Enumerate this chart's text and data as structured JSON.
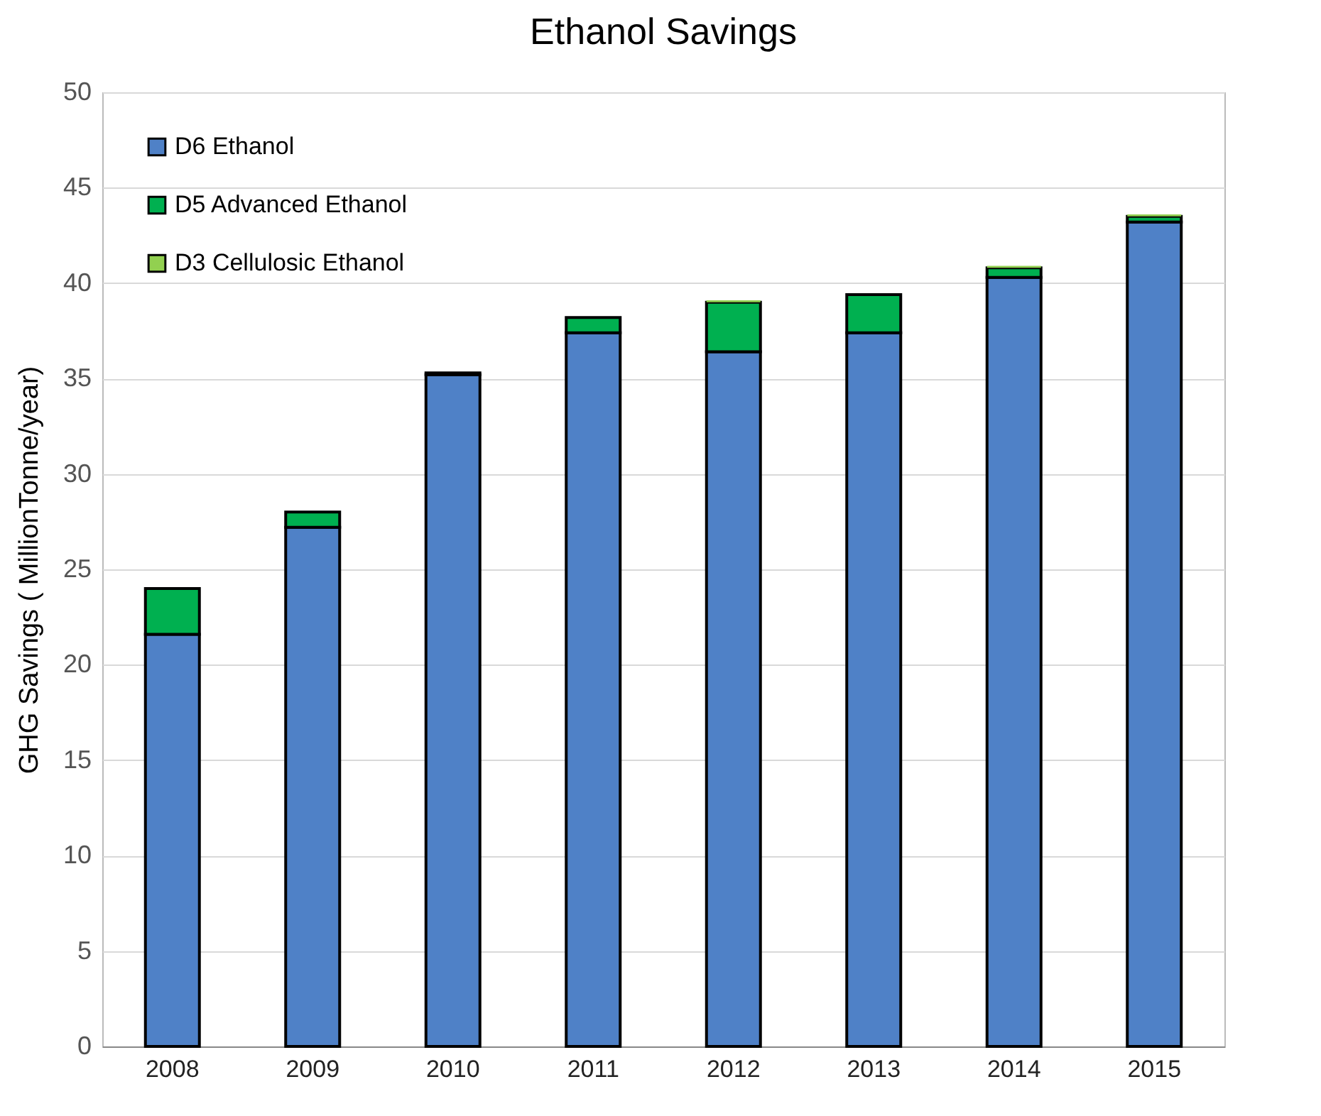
{
  "chart_data": {
    "type": "bar",
    "title": "Ethanol Savings",
    "ylabel": "GHG Savings ( MillionTonne/year)",
    "categories": [
      "2008",
      "2009",
      "2010",
      "2011",
      "2012",
      "2013",
      "2014",
      "2015"
    ],
    "stacked": true,
    "series": [
      {
        "name": "D6 Ethanol",
        "color": "#4f81c7",
        "values": [
          21.6,
          27.2,
          35.2,
          37.4,
          36.4,
          37.4,
          40.3,
          43.2
        ]
      },
      {
        "name": "D5 Advanced Ethanol",
        "color": "#00b050",
        "values": [
          2.4,
          0.8,
          0.1,
          0.8,
          2.6,
          2.0,
          0.5,
          0.3
        ]
      },
      {
        "name": "D3 Cellulosic Ethanol",
        "color": "#92d050",
        "values": [
          null,
          null,
          null,
          null,
          0.1,
          null,
          0.1,
          0.1
        ]
      }
    ],
    "ylim": [
      0,
      50
    ],
    "yticks": [
      0,
      5,
      10,
      15,
      20,
      25,
      30,
      35,
      40,
      45,
      50
    ],
    "grid": "y",
    "legend": "top left"
  }
}
